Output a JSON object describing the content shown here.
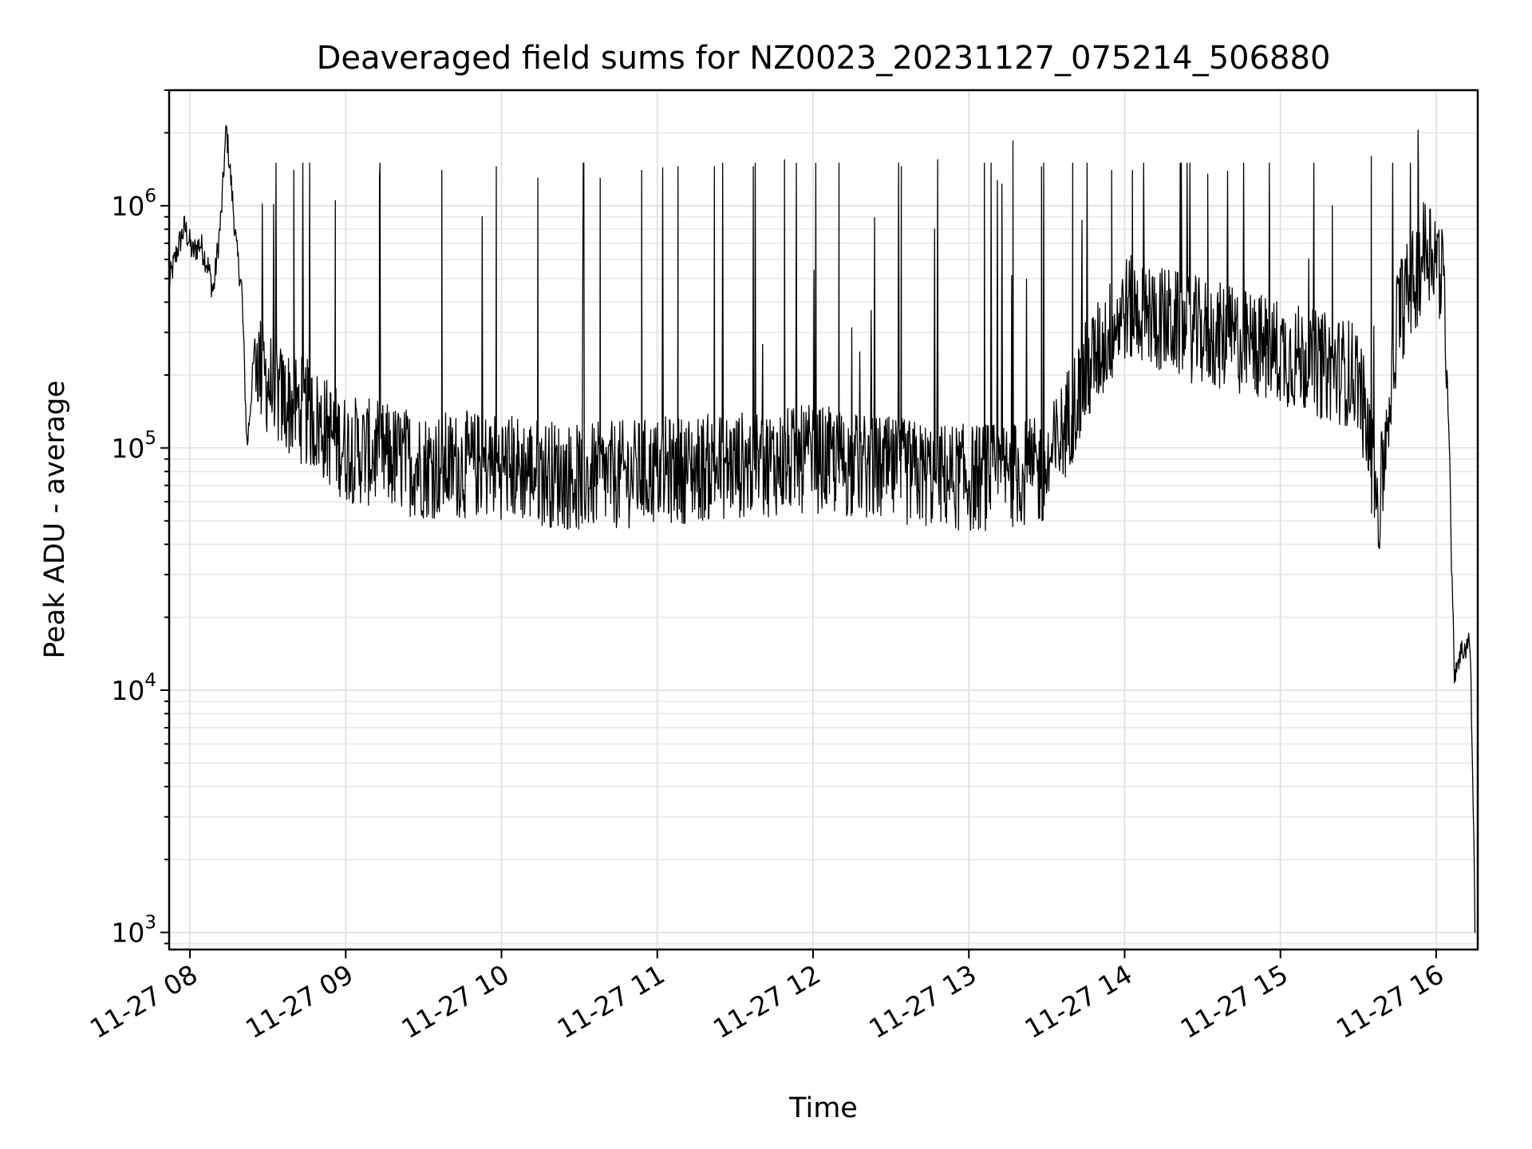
{
  "chart_data": {
    "type": "line",
    "title": "Deaveraged field sums for NZ0023_20231127_075214_506880",
    "xlabel": "Time",
    "ylabel": "Peak ADU - average",
    "x_axis": {
      "scale": "time",
      "range": [
        "2023-11-27 07:52",
        "2023-11-27 16:16"
      ],
      "ticks": [
        "11-27 08",
        "11-27 09",
        "11-27 10",
        "11-27 11",
        "11-27 12",
        "11-27 13",
        "11-27 14",
        "11-27 15",
        "11-27 16"
      ],
      "tick_rotation_deg": 30
    },
    "y_axis": {
      "scale": "log",
      "range": [
        850,
        3000000
      ],
      "ticks": [
        {
          "base": "10",
          "exp": "3",
          "value": 1000
        },
        {
          "base": "10",
          "exp": "4",
          "value": 10000
        },
        {
          "base": "10",
          "exp": "5",
          "value": 100000
        },
        {
          "base": "10",
          "exp": "6",
          "value": 1000000
        }
      ]
    },
    "grid": "on (major and minor)",
    "legend": "none",
    "line_color": "#000000",
    "series": [
      {
        "points": [
          [
            "2023-11-27 07:52",
            480000
          ],
          [
            "2023-11-27 07:55",
            650000
          ],
          [
            "2023-11-27 07:58",
            820000
          ],
          [
            "2023-11-27 08:01",
            640000
          ],
          [
            "2023-11-27 08:04",
            700000
          ],
          [
            "2023-11-27 08:07",
            560000
          ],
          [
            "2023-11-27 08:09",
            440000
          ],
          [
            "2023-11-27 08:12",
            900000
          ],
          [
            "2023-11-27 08:14",
            2100000
          ],
          [
            "2023-11-27 08:16",
            1200000
          ],
          [
            "2023-11-27 08:18",
            650000
          ],
          [
            "2023-11-27 08:20",
            450000
          ],
          [
            "2023-11-27 08:22",
            100000
          ],
          [
            "2023-11-27 08:25",
            260000
          ],
          [
            "2023-11-27 08:28",
            200000
          ],
          [
            "2023-11-27 08:35",
            160000
          ],
          [
            "2023-11-27 08:45",
            140000
          ],
          [
            "2023-11-27 09:00",
            100000
          ],
          [
            "2023-11-27 09:30",
            85000
          ],
          [
            "2023-11-27 10:00",
            85000
          ],
          [
            "2023-11-27 10:30",
            75000
          ],
          [
            "2023-11-27 11:00",
            80000
          ],
          [
            "2023-11-27 11:30",
            85000
          ],
          [
            "2023-11-27 12:00",
            90000
          ],
          [
            "2023-11-27 12:30",
            80000
          ],
          [
            "2023-11-27 13:00",
            75000
          ],
          [
            "2023-11-27 13:30",
            80000
          ],
          [
            "2023-11-27 13:45",
            200000
          ],
          [
            "2023-11-27 14:00",
            380000
          ],
          [
            "2023-11-27 14:30",
            300000
          ],
          [
            "2023-11-27 15:00",
            250000
          ],
          [
            "2023-11-27 15:15",
            220000
          ],
          [
            "2023-11-27 15:30",
            200000
          ],
          [
            "2023-11-27 15:38",
            55000
          ],
          [
            "2023-11-27 15:45",
            350000
          ],
          [
            "2023-11-27 15:52",
            500000
          ],
          [
            "2023-11-27 15:56",
            700000
          ],
          [
            "2023-11-27 16:00",
            650000
          ],
          [
            "2023-11-27 16:03",
            450000
          ],
          [
            "2023-11-27 16:05",
            120000
          ],
          [
            "2023-11-27 16:06",
            30000
          ],
          [
            "2023-11-27 16:07",
            12000
          ],
          [
            "2023-11-27 16:09",
            14000
          ],
          [
            "2023-11-27 16:11",
            15000
          ],
          [
            "2023-11-27 16:13",
            16000
          ],
          [
            "2023-11-27 16:14",
            5000
          ],
          [
            "2023-11-27 16:15",
            1000
          ]
        ],
        "spikes": [
          [
            "2023-11-27 08:40",
            1400000
          ],
          [
            "2023-11-27 08:56",
            1050000
          ],
          [
            "2023-11-27 09:13",
            1300000
          ],
          [
            "2023-11-27 09:37",
            1400000
          ],
          [
            "2023-11-27 09:58",
            1450000
          ],
          [
            "2023-11-27 10:14",
            1300000
          ],
          [
            "2023-11-27 10:38",
            1300000
          ],
          [
            "2023-11-27 10:54",
            1400000
          ],
          [
            "2023-11-27 11:08",
            1450000
          ],
          [
            "2023-11-27 11:22",
            1450000
          ],
          [
            "2023-11-27 11:37",
            1450000
          ],
          [
            "2023-11-27 11:49",
            1550000
          ],
          [
            "2023-11-27 12:10",
            1500000
          ],
          [
            "2023-11-27 12:34",
            1450000
          ],
          [
            "2023-11-27 12:48",
            1550000
          ],
          [
            "2023-11-27 13:06",
            1500000
          ],
          [
            "2023-11-27 13:17",
            1850000
          ],
          [
            "2023-11-27 13:28",
            1450000
          ],
          [
            "2023-11-27 13:40",
            1500000
          ],
          [
            "2023-11-27 13:55",
            1400000
          ],
          [
            "2023-11-27 14:03",
            1400000
          ],
          [
            "2023-11-27 14:32",
            1350000
          ],
          [
            "2023-11-27 15:20",
            1000000
          ],
          [
            "2023-11-27 15:35",
            1600000
          ],
          [
            "2023-11-27 15:53",
            2050000
          ]
        ]
      }
    ]
  }
}
